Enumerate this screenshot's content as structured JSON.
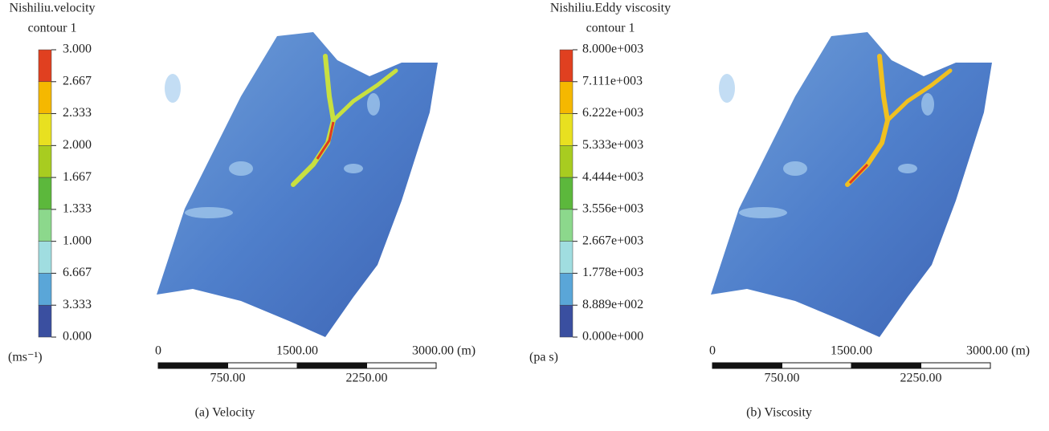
{
  "panels": [
    {
      "legend": {
        "title": "Nishiliu.velocity",
        "subtitle": "contour 1",
        "ticks": [
          "3.000",
          "2.667",
          "2.333",
          "2.000",
          "1.667",
          "1.333",
          "1.000",
          "6.667",
          "3.333",
          "0.000"
        ],
        "unit": "(ms⁻¹)"
      },
      "scale_bar": {
        "top_labels": [
          "0",
          "1500.00",
          "3000.00 (m)"
        ],
        "bottom_labels": [
          "750.00",
          "2250.00"
        ]
      },
      "caption": "(a) Velocity"
    },
    {
      "legend": {
        "title": "Nishiliu.Eddy viscosity",
        "subtitle": "contour 1",
        "ticks": [
          "8.000e+003",
          "7.111e+003",
          "6.222e+003",
          "5.333e+003",
          "4.444e+003",
          "3.556e+003",
          "2.667e+003",
          "1.778e+003",
          "8.889e+002",
          "0.000e+000"
        ],
        "unit": "(pa s)"
      },
      "scale_bar": {
        "top_labels": [
          "0",
          "1500.00",
          "3000.00 (m)"
        ],
        "bottom_labels": [
          "750.00",
          "2250.00"
        ]
      },
      "caption": "(b) Viscosity"
    }
  ]
}
